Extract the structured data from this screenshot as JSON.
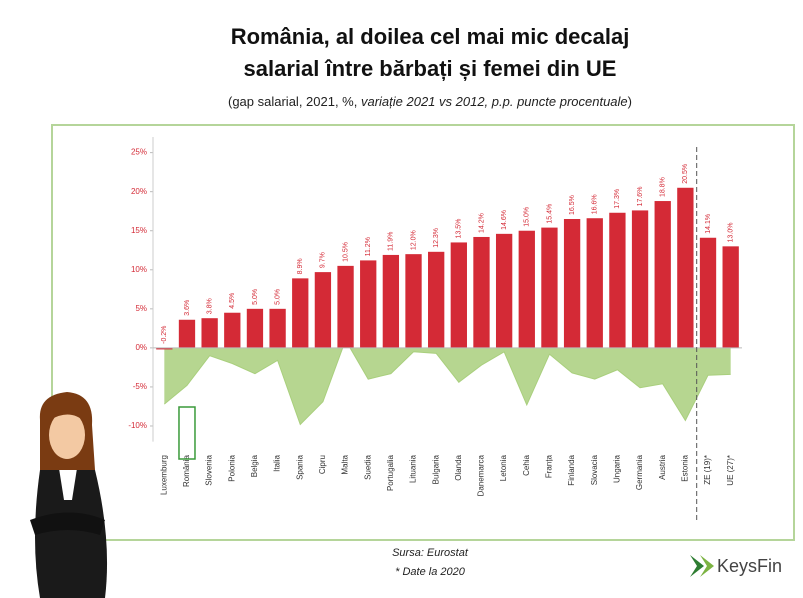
{
  "chart_data": {
    "type": "bar",
    "title": [
      "România, al doilea cel mai mic decalaj",
      "salarial între bărbați și femei din UE"
    ],
    "subtitle": [
      "(gap salarial, 2021, %, ",
      "variație 2021 vs 2012, p.p. puncte procentuale",
      ")"
    ],
    "categories": [
      "Luxemburg",
      "România",
      "Slovenia",
      "Polonia",
      "Belgia",
      "Italia",
      "Spania",
      "Cipru",
      "Malta",
      "Suedia",
      "Portugalia",
      "Lituania",
      "Bulgaria",
      "Olanda",
      "Danemarca",
      "Letonia",
      "Cehia",
      "Franța",
      "Finlanda",
      "Slovacia",
      "Ungaria",
      "Germania",
      "Austria",
      "Estonia",
      "ZE (19)*",
      "UE (27)*"
    ],
    "highlight_category": "România",
    "series": [
      {
        "kind": "bar",
        "color": "#d42a36",
        "values": [
          -0.2,
          3.6,
          3.8,
          4.5,
          5.0,
          5.0,
          8.9,
          9.7,
          10.5,
          11.2,
          11.9,
          12.0,
          12.3,
          13.5,
          14.2,
          14.6,
          15.0,
          15.4,
          16.5,
          16.6,
          17.3,
          17.6,
          18.8,
          20.5,
          14.1,
          13.0
        ],
        "value_labels": [
          "-0.2%",
          "3.6%",
          "3.8%",
          "4.5%",
          "5.0%",
          "5.0%",
          "8.9%",
          "9.7%",
          "10.5%",
          "11.2%",
          "11.9%",
          "12.0%",
          "12.3%",
          "13.5%",
          "14.2%",
          "14.6%",
          "15.0%",
          "15.4%",
          "16.5%",
          "16.6%",
          "17.3%",
          "17.6%",
          "18.8%",
          "20.5%",
          "14.1%",
          "13.0%"
        ]
      },
      {
        "kind": "area",
        "color": "#a9cf7d",
        "values": [
          -7.2,
          -4.8,
          -1.0,
          -2.0,
          -3.3,
          -1.6,
          -9.8,
          -6.9,
          1.0,
          -4.0,
          -3.3,
          -0.5,
          -0.7,
          -4.4,
          -2.2,
          -0.5,
          -7.3,
          -0.8,
          -3.2,
          -4.0,
          -2.8,
          -5.1,
          -4.6,
          -9.3,
          -3.5,
          -3.4
        ]
      }
    ],
    "ylim": [
      -12,
      27
    ],
    "yticks": [
      {
        "value": -10,
        "label": "-10%"
      },
      {
        "value": -5,
        "label": "-5%"
      },
      {
        "value": 0,
        "label": "0%"
      },
      {
        "value": 5,
        "label": "5%"
      },
      {
        "value": 10,
        "label": "10%"
      },
      {
        "value": 15,
        "label": "15%"
      },
      {
        "value": 20,
        "label": "20%"
      },
      {
        "value": 25,
        "label": "25%"
      }
    ],
    "source": "Sursa: Eurostat",
    "note": "* Date la 2020",
    "brand": "KeysFin"
  }
}
